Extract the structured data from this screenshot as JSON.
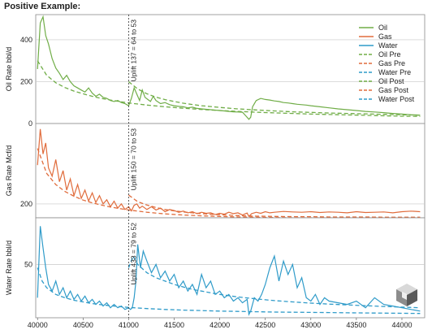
{
  "header": {
    "title": "Positive Example:"
  },
  "chart_data": {
    "type": "line",
    "x_ticks": [
      40000,
      40500,
      41000,
      41500,
      42000,
      42500,
      43000,
      43500,
      44000
    ],
    "xlim": [
      39980,
      44250
    ],
    "divider_x": 41000,
    "colors": {
      "Oil": "#70ad47",
      "Gas": "#e06c3c",
      "Water": "#2f9bc9"
    },
    "legend": {
      "placement": "top-right",
      "entries": [
        {
          "label": "Oil",
          "color": "#70ad47",
          "style": "solid"
        },
        {
          "label": "Gas",
          "color": "#e06c3c",
          "style": "solid"
        },
        {
          "label": "Water",
          "color": "#2f9bc9",
          "style": "solid"
        },
        {
          "label": "Oil Pre",
          "color": "#70ad47",
          "style": "dashed"
        },
        {
          "label": "Gas Pre",
          "color": "#e06c3c",
          "style": "dashed"
        },
        {
          "label": "Water Pre",
          "color": "#2f9bc9",
          "style": "dashed"
        },
        {
          "label": "Oil Post",
          "color": "#70ad47",
          "style": "dashed"
        },
        {
          "label": "Gas Post",
          "color": "#e06c3c",
          "style": "dashed"
        },
        {
          "label": "Water Post",
          "color": "#2f9bc9",
          "style": "dashed"
        }
      ]
    },
    "panels": [
      {
        "name": "Oil",
        "ylabel": "Oil Rate bbl/d",
        "ylim": [
          0,
          520
        ],
        "yticks": [
          0,
          200,
          400
        ],
        "annotation": "Uplift 137 = 64 to 53",
        "actual": {
          "x": [
            40000,
            40030,
            40060,
            40090,
            40120,
            40160,
            40200,
            40240,
            40280,
            40320,
            40360,
            40400,
            40440,
            40480,
            40520,
            40560,
            40600,
            40640,
            40680,
            40720,
            40760,
            40800,
            40840,
            40880,
            40920,
            40960,
            41000,
            41030,
            41060,
            41090,
            41120,
            41150,
            41180,
            41210,
            41240,
            41270,
            41300,
            41350,
            41400,
            41450,
            41500,
            41550,
            41600,
            41650,
            41700,
            41750,
            41800,
            41850,
            41900,
            41950,
            42000,
            42050,
            42100,
            42150,
            42200,
            42250,
            42290,
            42320,
            42340,
            42360,
            42400,
            42450,
            42500,
            42550,
            42600,
            42650,
            42700,
            42750,
            42800,
            42850,
            42900,
            42950,
            43000,
            43100,
            43200,
            43300,
            43400,
            43500,
            43600,
            43700,
            43800,
            43900,
            44000,
            44100,
            44200
          ],
          "y": [
            260,
            480,
            510,
            420,
            380,
            310,
            265,
            240,
            210,
            230,
            200,
            180,
            170,
            160,
            150,
            170,
            145,
            130,
            140,
            125,
            120,
            110,
            105,
            110,
            100,
            95,
            85,
            120,
            170,
            140,
            110,
            160,
            125,
            115,
            105,
            130,
            110,
            95,
            100,
            90,
            85,
            82,
            80,
            75,
            78,
            72,
            70,
            68,
            66,
            64,
            62,
            60,
            58,
            56,
            55,
            54,
            35,
            20,
            30,
            80,
            110,
            120,
            115,
            112,
            108,
            105,
            100,
            98,
            95,
            92,
            90,
            88,
            85,
            80,
            75,
            70,
            66,
            62,
            58,
            55,
            52,
            48,
            45,
            42,
            40
          ]
        },
        "pre": {
          "x": [
            40000,
            40100,
            40200,
            40300,
            40400,
            40500,
            40600,
            40700,
            40800,
            40900,
            41000,
            41200,
            41400,
            41600,
            41800,
            42000,
            42200,
            42400,
            42600,
            42800,
            43000,
            43200,
            43400,
            43600,
            43800,
            44000,
            44200
          ],
          "y": [
            300,
            230,
            195,
            172,
            155,
            142,
            130,
            120,
            112,
            105,
            98,
            88,
            80,
            73,
            67,
            62,
            58,
            54,
            51,
            48,
            45,
            43,
            41,
            39,
            37,
            35,
            34
          ]
        },
        "post": {
          "x": [
            41000,
            41100,
            41200,
            41300,
            41400,
            41500,
            41600,
            41700,
            41800,
            41900,
            42000,
            42200,
            42400,
            42600,
            42800,
            43000,
            43200,
            43400,
            43600,
            43800,
            44000,
            44200
          ],
          "y": [
            200,
            165,
            142,
            126,
            114,
            105,
            97,
            91,
            85,
            81,
            77,
            70,
            65,
            60,
            56,
            53,
            50,
            48,
            46,
            44,
            42,
            40
          ]
        }
      },
      {
        "name": "Gas",
        "ylabel": "Gas Rate Mcf/d",
        "ylim": [
          150,
          490
        ],
        "yticks": [
          200
        ],
        "annotation": "Uplift 150 = 70 to 53",
        "actual": {
          "x": [
            40000,
            40030,
            40060,
            40090,
            40120,
            40160,
            40200,
            40240,
            40280,
            40320,
            40360,
            40400,
            40440,
            40480,
            40520,
            40560,
            40600,
            40640,
            40680,
            40720,
            40760,
            40800,
            40840,
            40880,
            40920,
            40960,
            41000,
            41030,
            41060,
            41090,
            41120,
            41150,
            41200,
            41250,
            41300,
            41350,
            41400,
            41450,
            41500,
            41550,
            41600,
            41650,
            41700,
            41750,
            41800,
            41850,
            41900,
            41950,
            42000,
            42050,
            42100,
            42150,
            42200,
            42250,
            42300,
            42320,
            42350,
            42400,
            42450,
            42500,
            42550,
            42600,
            42700,
            42800,
            42900,
            43000,
            43100,
            43200,
            43300,
            43400,
            43500,
            43600,
            43700,
            43800,
            43900,
            44000,
            44100,
            44200
          ],
          "y": [
            340,
            470,
            380,
            420,
            330,
            300,
            360,
            280,
            320,
            250,
            290,
            230,
            270,
            220,
            250,
            210,
            240,
            205,
            230,
            200,
            215,
            190,
            210,
            185,
            200,
            180,
            190,
            175,
            195,
            200,
            185,
            192,
            180,
            190,
            178,
            185,
            172,
            180,
            176,
            170,
            174,
            168,
            172,
            165,
            170,
            166,
            168,
            162,
            166,
            163,
            170,
            165,
            168,
            160,
            167,
            155,
            165,
            170,
            166,
            172,
            168,
            170,
            173,
            171,
            170,
            172,
            169,
            171,
            170,
            168,
            172,
            169,
            170,
            171,
            168,
            172,
            174,
            172
          ]
        },
        "pre": {
          "x": [
            40000,
            40100,
            40200,
            40300,
            40400,
            40500,
            40600,
            40700,
            40800,
            40900,
            41000,
            41200,
            41400,
            41600,
            41800,
            42000,
            42200,
            42400,
            42600,
            42800,
            43000,
            43200,
            43400,
            43600,
            43800,
            44000,
            44200
          ],
          "y": [
            400,
            310,
            270,
            245,
            228,
            214,
            204,
            196,
            189,
            183,
            178,
            170,
            164,
            160,
            157,
            155,
            153,
            152,
            151,
            150,
            150,
            150,
            150,
            150,
            150,
            150,
            150
          ]
        },
        "post": {
          "x": [
            41000,
            41100,
            41200,
            41300,
            41400,
            41500,
            41600,
            41700,
            41800,
            41900,
            42000,
            42200,
            42400,
            42600,
            42800,
            43000,
            43200,
            43400,
            43600,
            43800,
            44000,
            44200
          ],
          "y": [
            232,
            208,
            196,
            187,
            180,
            175,
            171,
            168,
            165,
            163,
            161,
            158,
            156,
            155,
            154,
            154,
            153,
            153,
            153,
            152,
            152,
            152
          ]
        }
      },
      {
        "name": "Water",
        "ylabel": "Water Rate bbl/d",
        "ylim": [
          18,
          78
        ],
        "yticks": [
          50
        ],
        "annotation": "Uplift 433 = 79 to 52",
        "actual": {
          "x": [
            40000,
            40030,
            40060,
            40090,
            40120,
            40160,
            40200,
            40240,
            40280,
            40320,
            40360,
            40400,
            40440,
            40480,
            40520,
            40560,
            40600,
            40640,
            40680,
            40720,
            40760,
            40800,
            40840,
            40880,
            40920,
            40960,
            41000,
            41020,
            41040,
            41060,
            41080,
            41100,
            41130,
            41160,
            41200,
            41250,
            41300,
            41350,
            41400,
            41450,
            41500,
            41550,
            41600,
            41650,
            41700,
            41750,
            41800,
            41850,
            41900,
            41950,
            42000,
            42050,
            42100,
            42150,
            42200,
            42250,
            42300,
            42320,
            42340,
            42380,
            42420,
            42460,
            42500,
            42550,
            42600,
            42650,
            42700,
            42750,
            42800,
            42850,
            42900,
            42950,
            43000,
            43050,
            43100,
            43150,
            43200,
            43300,
            43400,
            43500,
            43600,
            43700,
            43800,
            43900,
            44000,
            44100,
            44200
          ],
          "y": [
            30,
            73,
            60,
            48,
            38,
            34,
            40,
            32,
            36,
            30,
            34,
            29,
            32,
            28,
            31,
            27,
            29,
            26,
            28,
            25,
            27,
            24,
            26,
            24,
            25,
            23,
            24,
            23,
            24,
            30,
            40,
            62,
            48,
            58,
            52,
            45,
            50,
            42,
            46,
            40,
            44,
            36,
            40,
            34,
            38,
            32,
            44,
            36,
            40,
            32,
            34,
            30,
            32,
            28,
            30,
            27,
            29,
            20,
            22,
            30,
            28,
            32,
            38,
            48,
            55,
            40,
            52,
            44,
            50,
            36,
            42,
            30,
            28,
            32,
            26,
            30,
            28,
            27,
            26,
            28,
            24,
            30,
            26,
            25,
            24,
            23,
            22
          ]
        },
        "pre": {
          "x": [
            40000,
            40050,
            40100,
            40200,
            40300,
            40400,
            40500,
            40600,
            40700,
            40800,
            40900,
            41000,
            41200,
            41400,
            41600,
            41800,
            42000,
            42200,
            42400,
            42600,
            42800,
            43000,
            43200,
            43400,
            43600,
            43800,
            44000,
            44200
          ],
          "y": [
            48,
            40,
            36,
            32,
            30,
            28.5,
            27.5,
            26.5,
            25.8,
            25.2,
            24.7,
            24.2,
            23.5,
            23,
            22.6,
            22.3,
            22,
            21.8,
            21.6,
            21.4,
            21.3,
            21.2,
            21.1,
            21,
            20.9,
            20.8,
            20.7,
            20.6
          ]
        },
        "post": {
          "x": [
            41000,
            41050,
            41100,
            41200,
            41300,
            41400,
            41500,
            41600,
            41700,
            41800,
            41900,
            42000,
            42200,
            42400,
            42600,
            42800,
            43000,
            43200,
            43400,
            43600,
            43800,
            44000,
            44200
          ],
          "y": [
            48,
            55,
            50,
            45,
            42,
            40,
            38,
            36.5,
            35,
            34,
            33,
            32,
            30.5,
            29.3,
            28.3,
            27.5,
            26.8,
            26.2,
            25.7,
            25.2,
            24.8,
            24.4,
            24
          ]
        }
      }
    ]
  }
}
